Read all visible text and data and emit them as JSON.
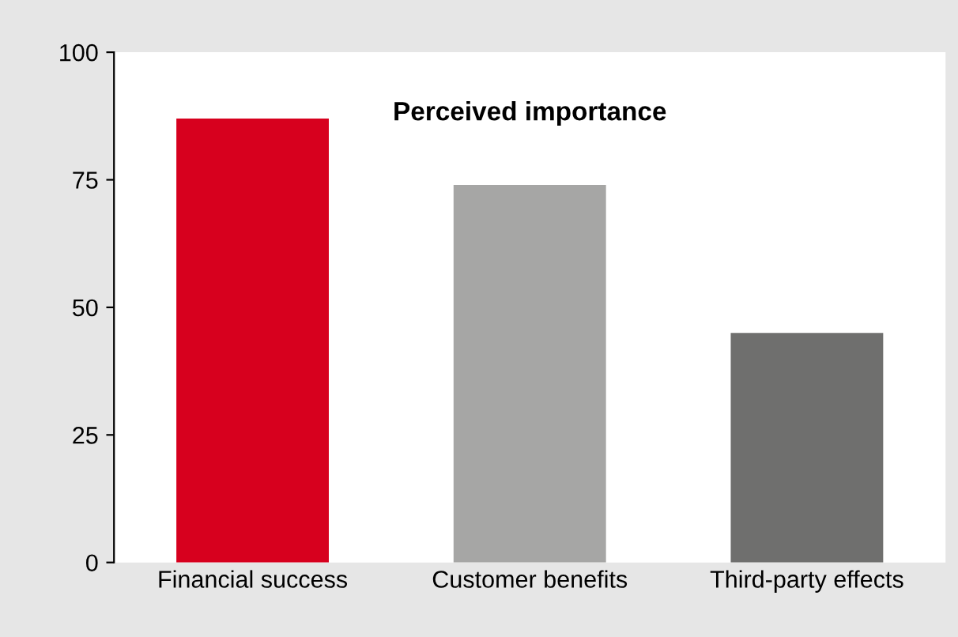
{
  "chart_data": {
    "type": "bar",
    "title": "Perceived importance",
    "categories": [
      "Financial success",
      "Customer benefits",
      "Third-party effects"
    ],
    "values": [
      87,
      74,
      45
    ],
    "colors": [
      "#d7001e",
      "#a6a6a5",
      "#6f6f6e"
    ],
    "ylim": [
      0,
      100
    ],
    "yticks": [
      0,
      25,
      50,
      75,
      100
    ],
    "grid": false
  }
}
